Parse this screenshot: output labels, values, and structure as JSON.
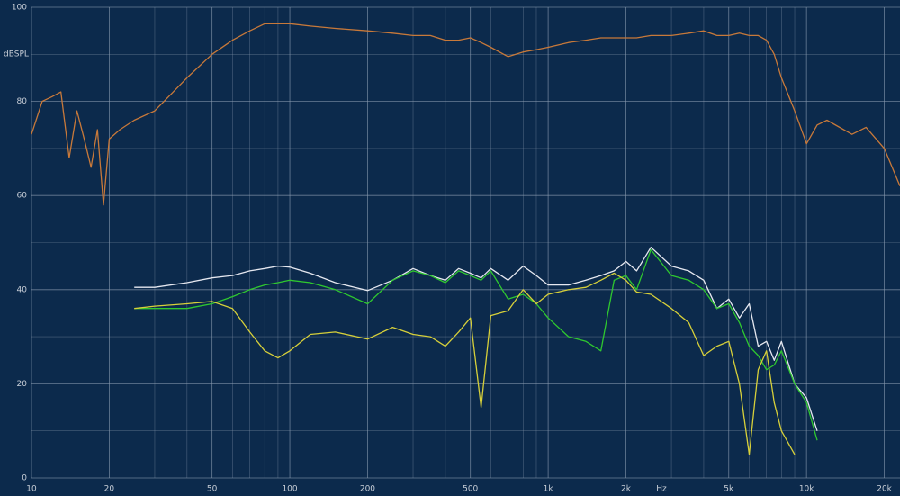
{
  "chart_data": {
    "type": "line",
    "y_label": "dBSPL",
    "x_label": "Hz",
    "xscale": "log",
    "xlim": [
      10,
      23000
    ],
    "ylim": [
      0,
      100
    ],
    "xticks": [
      10,
      20,
      50,
      100,
      200,
      500,
      {
        "value": 1000,
        "label": "1k"
      },
      {
        "value": 2000,
        "label": "2k"
      },
      {
        "value": 5000,
        "label": "5k"
      },
      {
        "value": 10000,
        "label": "10k"
      },
      {
        "value": 20000,
        "label": "20k"
      }
    ],
    "xminorticks": [
      30,
      40,
      60,
      70,
      80,
      90,
      300,
      400,
      600,
      700,
      800,
      900,
      3000,
      4000,
      6000,
      7000,
      8000,
      9000
    ],
    "yticks": [
      0,
      20,
      40,
      60,
      80,
      100
    ],
    "yminorticks": [
      10,
      30,
      50,
      70,
      90
    ],
    "grid": true,
    "background": "#0c2a4c",
    "x": [
      10,
      11,
      12,
      13,
      14,
      15,
      16,
      17,
      18,
      19,
      20,
      22,
      25,
      30,
      40,
      50,
      60,
      70,
      80,
      90,
      100,
      120,
      150,
      200,
      250,
      300,
      350,
      400,
      450,
      500,
      550,
      600,
      700,
      800,
      900,
      1000,
      1200,
      1400,
      1600,
      1800,
      2000,
      2200,
      2500,
      3000,
      3500,
      4000,
      4500,
      5000,
      5500,
      6000,
      6500,
      7000,
      7500,
      8000,
      9000,
      10000,
      11000,
      12000,
      15000,
      17000,
      20000,
      23000
    ],
    "series": [
      {
        "color": "#c8793a",
        "values": [
          73,
          80,
          81,
          82,
          68,
          78,
          72,
          66,
          74,
          58,
          72,
          74,
          76,
          78,
          85,
          90,
          93,
          95,
          96.5,
          96.5,
          96.5,
          96,
          95.5,
          95,
          94.5,
          94,
          94,
          93,
          93,
          93.5,
          92.5,
          91.5,
          89.5,
          90.5,
          91,
          91.5,
          92.5,
          93,
          93.5,
          93.5,
          93.5,
          93.5,
          94,
          94,
          94.5,
          95,
          94,
          94,
          94.5,
          94,
          94,
          93,
          90,
          85,
          78,
          71,
          75,
          76,
          73,
          74.5,
          70,
          62
        ]
      },
      {
        "color": "#e6e8f0",
        "values": [
          null,
          null,
          null,
          null,
          null,
          null,
          null,
          null,
          null,
          null,
          null,
          null,
          40.5,
          40.5,
          41.5,
          42.5,
          43,
          44,
          44.5,
          45,
          44.8,
          43.5,
          41.5,
          39.8,
          42,
          44.5,
          43,
          42,
          44.5,
          43.5,
          42.5,
          44.5,
          42,
          45,
          43,
          41,
          41,
          42,
          43,
          44,
          46,
          44,
          49,
          45,
          44,
          42,
          36,
          38,
          34,
          37,
          28,
          29,
          25,
          29,
          20,
          17,
          10,
          null,
          null,
          null,
          null,
          null
        ]
      },
      {
        "color": "#2fc82f",
        "values": [
          null,
          null,
          null,
          null,
          null,
          null,
          null,
          null,
          null,
          null,
          null,
          null,
          36,
          36,
          36,
          37,
          38.5,
          40,
          41,
          41.5,
          42,
          41.5,
          40,
          37,
          42,
          44,
          43,
          41.5,
          44,
          43,
          42,
          44,
          38,
          39,
          37,
          34,
          30,
          29,
          27,
          42,
          43,
          40,
          48.5,
          43,
          42,
          40,
          36,
          37,
          33,
          28,
          26,
          23,
          24,
          27,
          20,
          16,
          8,
          null,
          null,
          null,
          null,
          null
        ]
      },
      {
        "color": "#d7d03a",
        "values": [
          null,
          null,
          null,
          null,
          null,
          null,
          null,
          null,
          null,
          null,
          null,
          null,
          36,
          36.5,
          37,
          37.5,
          36,
          31,
          27,
          25.5,
          27,
          30.5,
          31,
          29.5,
          32,
          30.5,
          30,
          28,
          31,
          34,
          15,
          34.5,
          35.5,
          40,
          37,
          39,
          40,
          40.5,
          42,
          43.5,
          42,
          39.5,
          39,
          36,
          33,
          26,
          28,
          29,
          20,
          5,
          23,
          27,
          16,
          10,
          5,
          null,
          null,
          null,
          null,
          null,
          null,
          null
        ]
      }
    ]
  }
}
